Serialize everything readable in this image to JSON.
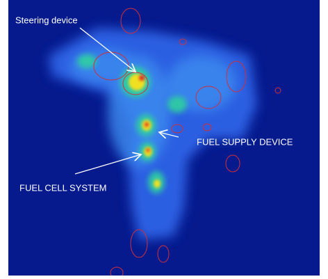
{
  "annotations": [
    "Steering device",
    "FUEL SUPPLY DEVICE",
    "FUEL CELL SYSTEM"
  ]
}
